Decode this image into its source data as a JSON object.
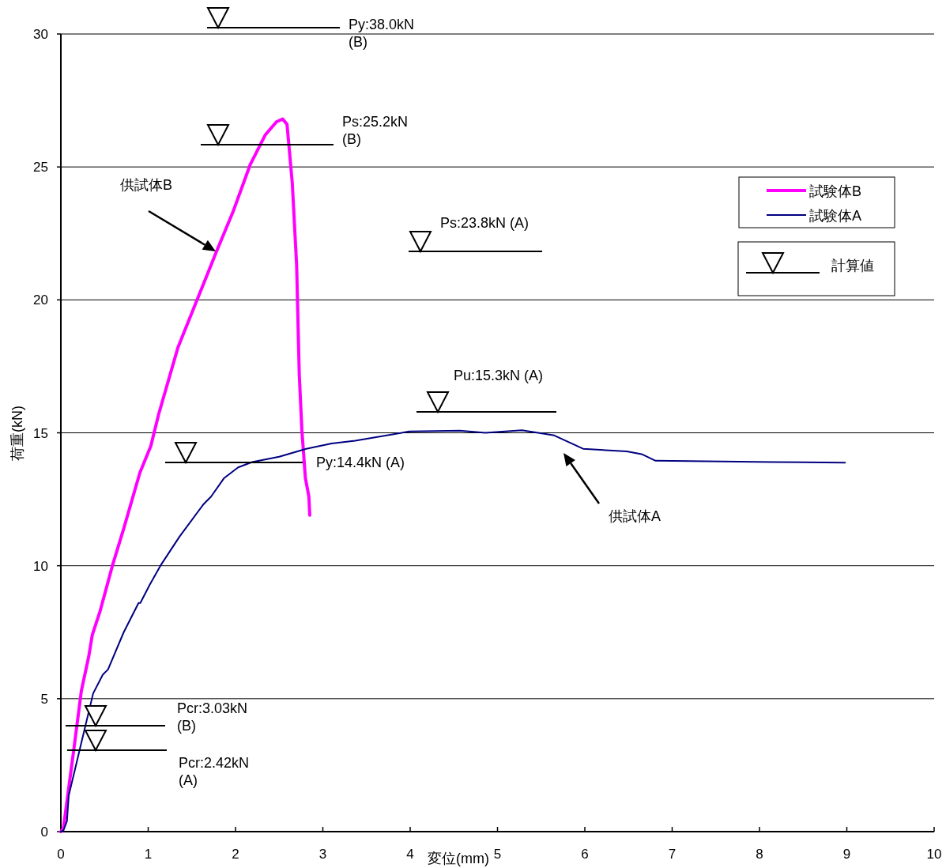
{
  "chart_data": {
    "type": "line",
    "xlabel": "変位(mm)",
    "ylabel": "荷重(kN)",
    "xlim": [
      0,
      10
    ],
    "ylim": [
      0,
      30
    ],
    "xticks": [
      0,
      1,
      2,
      3,
      4,
      5,
      6,
      7,
      8,
      9,
      10
    ],
    "yticks": [
      0,
      5,
      10,
      15,
      20,
      25,
      30
    ],
    "grid": "y",
    "legend": "top right",
    "series": [
      {
        "name": "試験体B",
        "color": "#ff00ff",
        "x": [
          0,
          0.03,
          0.145,
          0.235,
          0.32,
          0.36,
          0.45,
          0.59,
          0.72,
          0.905,
          1.03,
          1.12,
          1.34,
          1.56,
          1.78,
          1.97,
          2.17,
          2.34,
          2.47,
          2.54,
          2.59,
          2.65,
          2.7,
          2.73,
          2.76,
          2.8,
          2.84,
          2.85
        ],
        "values": [
          0,
          0.15,
          3.0,
          5.3,
          6.6,
          7.4,
          8.3,
          10.0,
          11.4,
          13.5,
          14.5,
          15.7,
          18.2,
          20.0,
          21.8,
          23.3,
          25.1,
          26.2,
          26.7,
          26.8,
          26.6,
          24.4,
          21.3,
          17.2,
          15.1,
          13.3,
          12.6,
          11.9
        ]
      },
      {
        "name": "試験体A",
        "color": "#000080",
        "x": [
          0,
          0.03,
          0.07,
          0.09,
          0.21,
          0.37,
          0.48,
          0.54,
          0.72,
          0.89,
          0.91,
          1.02,
          1.14,
          1.36,
          1.63,
          1.72,
          1.87,
          2.03,
          2.19,
          2.5,
          2.81,
          3.1,
          3.37,
          3.99,
          4.57,
          4.86,
          5.28,
          5.65,
          5.98,
          6.48,
          6.65,
          6.81,
          8.15,
          8.98
        ],
        "values": [
          0,
          0.05,
          0.4,
          1.35,
          3.0,
          5.2,
          5.9,
          6.1,
          7.5,
          8.6,
          8.6,
          9.3,
          10.0,
          11.1,
          12.3,
          12.6,
          13.3,
          13.7,
          13.9,
          14.1,
          14.4,
          14.6,
          14.7,
          15.05,
          15.08,
          15.0,
          15.1,
          14.9,
          14.4,
          14.3,
          14.2,
          13.95,
          13.9,
          13.88
        ]
      }
    ],
    "annotations": [
      "Py:38.0kN\n(B)",
      "Ps:25.2kN\n(B)",
      "Ps:23.8kN (A)",
      "Pu:15.3kN (A)",
      "Py:14.4kN (A)",
      "Pcr:3.03kN\n(B)",
      "Pcr:2.42kN\n(A)",
      "供試体B",
      "供試体A",
      "計算値"
    ]
  }
}
